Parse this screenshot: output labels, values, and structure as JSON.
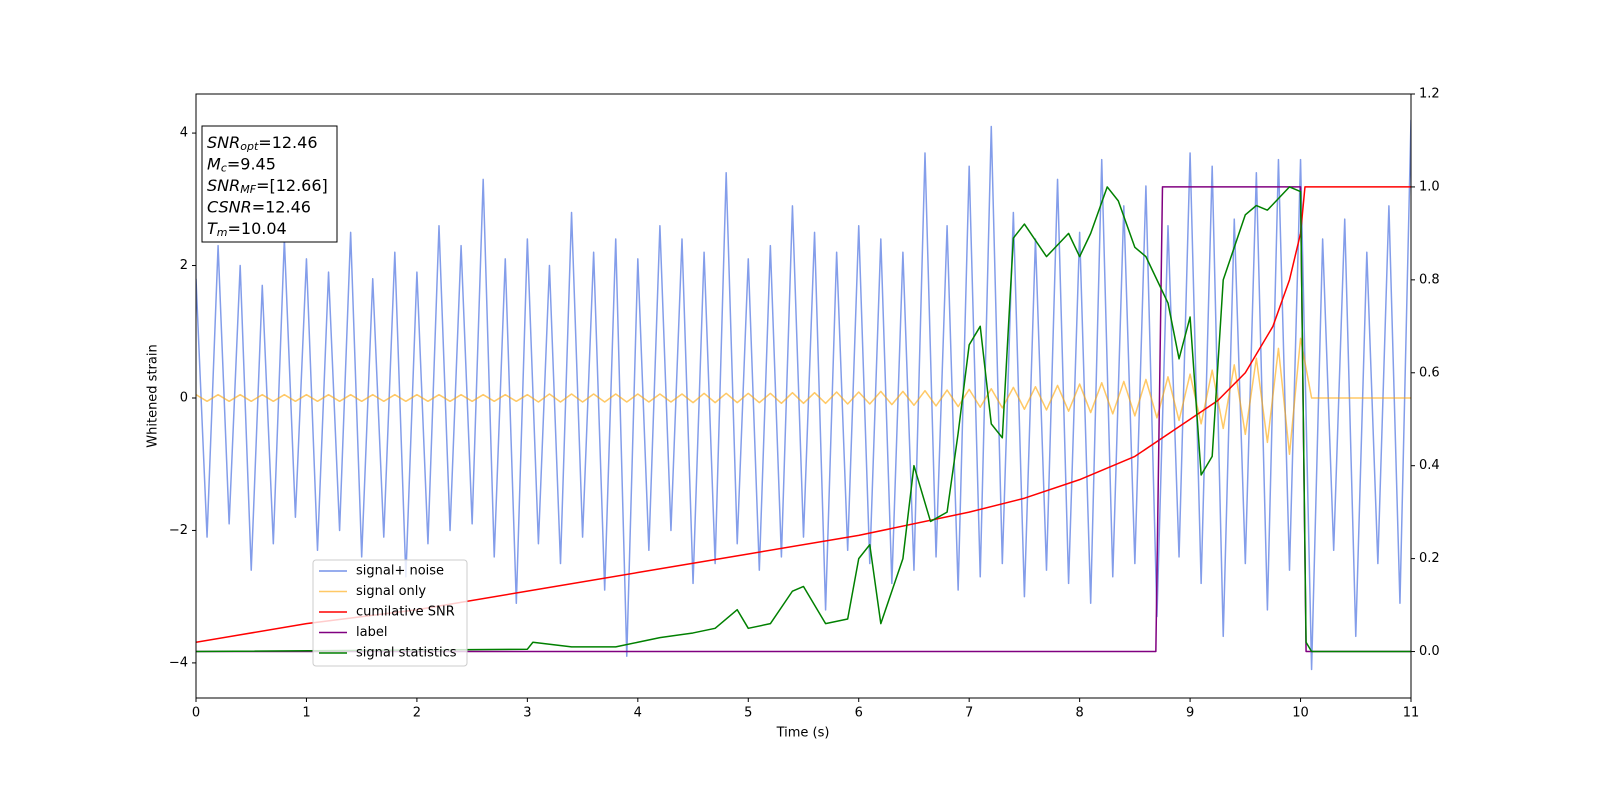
{
  "chart_data": {
    "type": "line",
    "xlabel": "Time (s)",
    "ylabel": "Whitened strain",
    "xlim": [
      0,
      11
    ],
    "ylim": [
      -4.53,
      4.59
    ],
    "y2lim": [
      -0.1,
      1.2
    ],
    "xticks": [
      0,
      1,
      2,
      3,
      4,
      5,
      6,
      7,
      8,
      9,
      10,
      11
    ],
    "yticks": [
      {
        "value": -4,
        "label": "−4"
      },
      {
        "value": -2,
        "label": "−2"
      },
      0,
      2,
      4
    ],
    "y2ticks": [
      {
        "value": 0,
        "label": "0.0"
      },
      0.2,
      0.4,
      0.6,
      0.8,
      {
        "value": 1,
        "label": "1.0"
      },
      1.2
    ],
    "legend": "lower left",
    "annotation": [
      {
        "main": "SNR",
        "sub": "opt",
        "rest": "=12.46"
      },
      {
        "main": "M",
        "sub": "c",
        "rest": "=9.45"
      },
      {
        "main": "SNR",
        "sub": "MF",
        "rest": "=[12.66]"
      },
      {
        "main": "CSNR",
        "rest": "=12.46"
      },
      {
        "main": "T",
        "sub": "m",
        "rest": "=10.04"
      }
    ],
    "x": [
      0,
      0.1,
      0.2,
      0.3,
      0.4,
      0.5,
      0.6,
      0.7,
      0.8,
      0.9,
      1,
      1.1,
      1.2,
      1.3,
      1.4,
      1.5,
      1.6,
      1.7,
      1.8,
      1.9,
      2,
      2.1,
      2.2,
      2.3,
      2.4,
      2.5,
      2.6,
      2.7,
      2.8,
      2.9,
      3,
      3.1,
      3.2,
      3.3,
      3.4,
      3.5,
      3.6,
      3.7,
      3.8,
      3.9,
      4,
      4.1,
      4.2,
      4.3,
      4.4,
      4.5,
      4.6,
      4.7,
      4.8,
      4.9,
      5,
      5.1,
      5.2,
      5.3,
      5.4,
      5.5,
      5.6,
      5.7,
      5.8,
      5.9,
      6,
      6.1,
      6.2,
      6.3,
      6.4,
      6.5,
      6.6,
      6.7,
      6.8,
      6.9,
      7,
      7.1,
      7.2,
      7.3,
      7.4,
      7.5,
      7.6,
      7.7,
      7.8,
      7.9,
      8,
      8.1,
      8.2,
      8.3,
      8.4,
      8.5,
      8.6,
      8.7,
      8.8,
      8.9,
      9,
      9.1,
      9.2,
      9.3,
      9.4,
      9.5,
      9.6,
      9.7,
      9.8,
      9.9,
      10,
      10.1,
      10.2,
      10.3,
      10.4,
      10.5,
      10.6,
      10.7,
      10.8,
      10.9,
      11
    ],
    "series": [
      {
        "name": "signal+ noise",
        "color": "#7592e8",
        "values": [
          1.8,
          -2.1,
          2.3,
          -1.9,
          2.0,
          -2.6,
          1.7,
          -2.2,
          2.4,
          -1.8,
          2.1,
          -2.3,
          1.9,
          -2.0,
          2.5,
          -2.4,
          1.8,
          -2.1,
          2.2,
          -2.7,
          1.9,
          -2.2,
          2.6,
          -2.0,
          2.3,
          -1.9,
          3.3,
          -2.4,
          2.1,
          -3.1,
          2.4,
          -2.2,
          2.0,
          -2.5,
          2.8,
          -2.1,
          2.2,
          -2.9,
          2.4,
          -3.9,
          2.1,
          -2.3,
          2.6,
          -2.0,
          2.4,
          -2.8,
          2.2,
          -2.5,
          3.4,
          -2.2,
          2.1,
          -2.6,
          2.3,
          -2.4,
          2.9,
          -2.1,
          2.5,
          -3.2,
          2.2,
          -2.3,
          2.6,
          -2.5,
          2.4,
          -2.8,
          2.2,
          -2.6,
          3.7,
          -2.4,
          2.6,
          -2.9,
          3.5,
          -2.7,
          4.1,
          -2.5,
          2.8,
          -3.0,
          2.4,
          -2.6,
          3.3,
          -2.8,
          2.5,
          -3.1,
          3.6,
          -2.7,
          2.9,
          -2.5,
          3.2,
          -3.3,
          2.6,
          -2.4,
          3.7,
          -2.8,
          3.5,
          -3.6,
          2.7,
          -2.5,
          3.4,
          -3.2,
          3.6,
          -2.6,
          3.6,
          -4.1,
          2.4,
          -2.3,
          2.7,
          -3.6,
          2.2,
          -2.5,
          2.9,
          -3.1,
          4.2
        ]
      },
      {
        "name": "signal only",
        "color": "#ffa500",
        "values": [
          0.05,
          -0.05,
          0.05,
          -0.05,
          0.05,
          -0.05,
          0.05,
          -0.05,
          0.05,
          -0.05,
          0.05,
          -0.05,
          0.05,
          -0.05,
          0.05,
          -0.05,
          0.05,
          -0.05,
          0.05,
          -0.05,
          0.05,
          -0.05,
          0.05,
          -0.05,
          0.05,
          -0.05,
          0.05,
          -0.05,
          0.05,
          -0.05,
          0.05,
          -0.06,
          0.06,
          -0.06,
          0.06,
          -0.06,
          0.06,
          -0.06,
          0.06,
          -0.06,
          0.06,
          -0.06,
          0.06,
          -0.06,
          0.06,
          -0.07,
          0.07,
          -0.07,
          0.07,
          -0.07,
          0.07,
          -0.07,
          0.07,
          -0.08,
          0.08,
          -0.08,
          0.08,
          -0.08,
          0.09,
          -0.09,
          0.09,
          -0.09,
          0.1,
          -0.1,
          0.1,
          -0.11,
          0.11,
          -0.12,
          0.12,
          -0.13,
          0.13,
          -0.14,
          0.14,
          -0.15,
          0.16,
          -0.17,
          0.17,
          -0.18,
          0.19,
          -0.2,
          0.21,
          -0.22,
          0.23,
          -0.24,
          0.25,
          -0.27,
          0.28,
          -0.3,
          0.32,
          -0.34,
          0.36,
          -0.39,
          0.42,
          -0.46,
          0.5,
          -0.55,
          0.6,
          -0.67,
          0.75,
          -0.85,
          0.9,
          0,
          0,
          0,
          0,
          0,
          0,
          0,
          0,
          0,
          0
        ]
      },
      {
        "name": "cumilative SNR",
        "color": "#ff0000",
        "axis": "y2",
        "x": [
          0,
          1,
          2,
          3,
          4,
          5,
          6,
          7,
          7.5,
          8,
          8.5,
          9,
          9.25,
          9.5,
          9.75,
          9.9,
          10,
          10.04,
          11
        ],
        "values": [
          0.02,
          0.06,
          0.09,
          0.13,
          0.17,
          0.21,
          0.25,
          0.3,
          0.33,
          0.37,
          0.42,
          0.5,
          0.54,
          0.6,
          0.7,
          0.8,
          0.9,
          1,
          1
        ]
      },
      {
        "name": "label",
        "color": "#800080",
        "axis": "y2",
        "x": [
          0,
          8.69,
          8.75,
          10,
          10.05,
          11
        ],
        "values": [
          0,
          0,
          1,
          1,
          0,
          0
        ]
      },
      {
        "name": "signal statistics",
        "color": "#008000",
        "axis": "y2",
        "x": [
          0,
          3,
          3.05,
          3.4,
          3.8,
          4,
          4.2,
          4.5,
          4.7,
          4.9,
          5,
          5.2,
          5.4,
          5.5,
          5.7,
          5.9,
          6,
          6.1,
          6.2,
          6.4,
          6.5,
          6.65,
          6.8,
          6.9,
          7,
          7.1,
          7.2,
          7.3,
          7.4,
          7.5,
          7.7,
          7.9,
          8,
          8.1,
          8.25,
          8.35,
          8.5,
          8.6,
          8.8,
          8.9,
          9,
          9.1,
          9.2,
          9.3,
          9.5,
          9.6,
          9.7,
          9.9,
          10,
          10.05,
          10.1,
          11
        ],
        "values": [
          0,
          0.005,
          0.02,
          0.01,
          0.01,
          0.02,
          0.03,
          0.04,
          0.05,
          0.09,
          0.05,
          0.06,
          0.13,
          0.14,
          0.06,
          0.07,
          0.2,
          0.23,
          0.06,
          0.2,
          0.4,
          0.28,
          0.3,
          0.47,
          0.66,
          0.7,
          0.49,
          0.46,
          0.89,
          0.92,
          0.85,
          0.9,
          0.85,
          0.9,
          1,
          0.97,
          0.87,
          0.85,
          0.75,
          0.63,
          0.72,
          0.38,
          0.42,
          0.8,
          0.94,
          0.96,
          0.95,
          1,
          0.99,
          0.02,
          0,
          0
        ]
      }
    ]
  }
}
